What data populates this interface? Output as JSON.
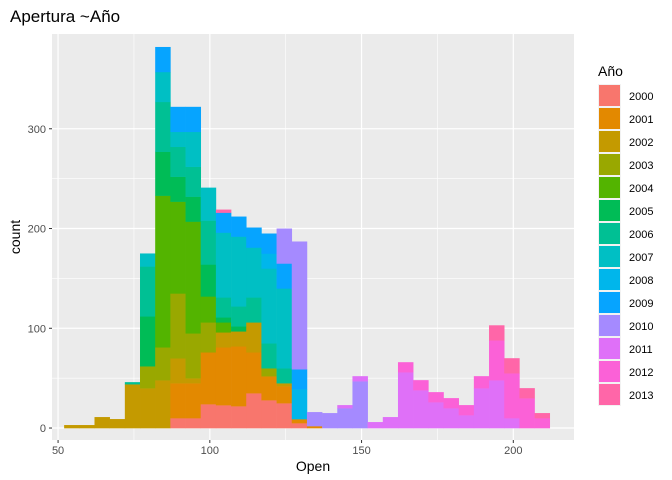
{
  "chart_data": {
    "type": "bar",
    "subtype": "stacked-histogram",
    "title": "Apertura ~Año",
    "xlabel": "Open",
    "ylabel": "count",
    "xlim": [
      48,
      220
    ],
    "ylim": [
      -12,
      395
    ],
    "x_ticks": [
      50,
      100,
      150,
      200
    ],
    "y_ticks": [
      0,
      100,
      200,
      300
    ],
    "grid": true,
    "legend_position": "right",
    "legend_title": "Año",
    "bin_starts": [
      52,
      57,
      62,
      67,
      72,
      77,
      82,
      87,
      92,
      97,
      102,
      107,
      112,
      117,
      122,
      127,
      132,
      137,
      142,
      147,
      152,
      157,
      162,
      167,
      172,
      177,
      182,
      187,
      192,
      197,
      202,
      207
    ],
    "bin_width": 5,
    "series": [
      {
        "name": "2000",
        "color": "#F8766D",
        "values": [
          0,
          0,
          0,
          0,
          0,
          0,
          0,
          0,
          0,
          0,
          0,
          0,
          0,
          0,
          0,
          0,
          0,
          0,
          0,
          0,
          0,
          0,
          0,
          0,
          0,
          0,
          0,
          0,
          0,
          0,
          0,
          0
        ]
      },
      {
        "name": "2001",
        "color": "#E38900",
        "values": [
          0,
          0,
          0,
          0,
          0,
          0,
          0,
          0,
          0,
          0,
          0,
          0,
          0,
          0,
          0,
          0,
          0,
          0,
          0,
          0,
          0,
          0,
          0,
          0,
          0,
          0,
          0,
          0,
          0,
          0,
          0,
          0
        ]
      },
      {
        "name": "2002",
        "color": "#C49A00",
        "values": [
          0,
          0,
          0,
          0,
          0,
          0,
          0,
          0,
          0,
          0,
          0,
          0,
          0,
          0,
          0,
          0,
          0,
          0,
          0,
          0,
          0,
          0,
          0,
          0,
          0,
          0,
          0,
          0,
          0,
          0,
          0,
          0
        ]
      },
      {
        "name": "2003",
        "color": "#99A800",
        "values": [
          0,
          0,
          0,
          0,
          0,
          0,
          0,
          0,
          0,
          0,
          0,
          0,
          0,
          0,
          0,
          0,
          0,
          0,
          0,
          0,
          0,
          0,
          0,
          0,
          0,
          0,
          0,
          0,
          0,
          0,
          0,
          0
        ]
      },
      {
        "name": "2004",
        "color": "#53B400",
        "values": [
          0,
          0,
          0,
          0,
          0,
          0,
          0,
          0,
          0,
          0,
          0,
          0,
          0,
          0,
          0,
          0,
          0,
          0,
          0,
          0,
          0,
          0,
          0,
          0,
          0,
          0,
          0,
          0,
          0,
          0,
          0,
          0
        ]
      },
      {
        "name": "2005",
        "color": "#00BC56",
        "values": [
          0,
          0,
          0,
          0,
          0,
          0,
          0,
          0,
          0,
          0,
          0,
          0,
          0,
          0,
          0,
          0,
          0,
          0,
          0,
          0,
          0,
          0,
          0,
          0,
          0,
          0,
          0,
          0,
          0,
          0,
          0,
          0
        ]
      },
      {
        "name": "2006",
        "color": "#00C094",
        "values": [
          0,
          0,
          0,
          0,
          0,
          0,
          0,
          0,
          0,
          0,
          0,
          0,
          0,
          0,
          0,
          0,
          0,
          0,
          0,
          0,
          0,
          0,
          0,
          0,
          0,
          0,
          0,
          0,
          0,
          0,
          0,
          0
        ]
      },
      {
        "name": "2007",
        "color": "#00BFC4",
        "values": [
          0,
          0,
          0,
          0,
          0,
          0,
          0,
          0,
          0,
          0,
          0,
          0,
          0,
          0,
          0,
          0,
          0,
          0,
          0,
          0,
          0,
          0,
          0,
          0,
          0,
          0,
          0,
          0,
          0,
          0,
          0,
          0
        ]
      },
      {
        "name": "2008",
        "color": "#00B6EB",
        "values": [
          0,
          0,
          0,
          0,
          0,
          0,
          0,
          0,
          0,
          0,
          0,
          0,
          0,
          0,
          0,
          0,
          0,
          0,
          0,
          0,
          0,
          0,
          0,
          0,
          0,
          0,
          0,
          0,
          0,
          0,
          0,
          0
        ]
      },
      {
        "name": "2009",
        "color": "#06A4FF",
        "values": [
          0,
          0,
          0,
          0,
          0,
          0,
          0,
          0,
          0,
          0,
          0,
          0,
          0,
          0,
          0,
          0,
          0,
          0,
          0,
          0,
          0,
          0,
          0,
          0,
          0,
          0,
          0,
          0,
          0,
          0,
          0,
          0
        ]
      },
      {
        "name": "2010",
        "color": "#A58AFF",
        "values": [
          0,
          0,
          0,
          0,
          0,
          0,
          0,
          0,
          0,
          0,
          0,
          0,
          0,
          0,
          0,
          0,
          0,
          0,
          0,
          0,
          0,
          0,
          0,
          0,
          0,
          0,
          0,
          0,
          0,
          0,
          0,
          0
        ]
      },
      {
        "name": "2011",
        "color": "#DF70F8",
        "values": [
          0,
          0,
          0,
          0,
          0,
          0,
          0,
          0,
          0,
          0,
          0,
          0,
          0,
          0,
          0,
          0,
          0,
          0,
          0,
          0,
          0,
          0,
          0,
          0,
          0,
          0,
          0,
          0,
          0,
          0,
          0,
          0
        ]
      },
      {
        "name": "2012",
        "color": "#FB61D7",
        "values": [
          0,
          0,
          0,
          0,
          0,
          0,
          0,
          0,
          0,
          0,
          0,
          0,
          0,
          0,
          0,
          0,
          0,
          0,
          0,
          0,
          0,
          0,
          0,
          0,
          0,
          0,
          0,
          0,
          0,
          0,
          0,
          0
        ]
      },
      {
        "name": "2013",
        "color": "#FF66A8",
        "values": [
          0,
          0,
          0,
          0,
          0,
          0,
          0,
          0,
          0,
          0,
          0,
          0,
          0,
          0,
          0,
          0,
          0,
          0,
          0,
          0,
          0,
          0,
          0,
          0,
          0,
          0,
          0,
          0,
          0,
          0,
          0,
          0
        ]
      }
    ],
    "bin_segments": [
      [
        [
          "2002",
          3
        ]
      ],
      [
        [
          "2002",
          3
        ]
      ],
      [
        [
          "2002",
          11
        ]
      ],
      [
        [
          "2002",
          9
        ]
      ],
      [
        [
          "2002",
          44
        ],
        [
          "2006",
          2
        ]
      ],
      [
        [
          "2002",
          40
        ],
        [
          "2003",
          22
        ],
        [
          "2005",
          50
        ],
        [
          "2006",
          50
        ],
        [
          "2007",
          13
        ]
      ],
      [
        [
          "2002",
          48
        ],
        [
          "2003",
          33
        ],
        [
          "2004",
          152
        ],
        [
          "2005",
          44
        ],
        [
          "2006",
          50
        ],
        [
          "2007",
          30
        ],
        [
          "2009",
          25
        ]
      ],
      [
        [
          "2000",
          10
        ],
        [
          "2001",
          35
        ],
        [
          "2002",
          25
        ],
        [
          "2003",
          65
        ],
        [
          "2004",
          92
        ],
        [
          "2005",
          25
        ],
        [
          "2006",
          30
        ],
        [
          "2007",
          15
        ],
        [
          "2009",
          25
        ]
      ],
      [
        [
          "2000",
          10
        ],
        [
          "2001",
          35
        ],
        [
          "2002",
          5
        ],
        [
          "2003",
          45
        ],
        [
          "2004",
          112
        ],
        [
          "2005",
          25
        ],
        [
          "2006",
          30
        ],
        [
          "2007",
          35
        ],
        [
          "2009",
          25
        ]
      ],
      [
        [
          "2000",
          24
        ],
        [
          "2001",
          52
        ],
        [
          "2003",
          30
        ],
        [
          "2004",
          26
        ],
        [
          "2005",
          32
        ],
        [
          "2006",
          44
        ],
        [
          "2007",
          33
        ]
      ],
      [
        [
          "2000",
          23
        ],
        [
          "2001",
          58
        ],
        [
          "2002",
          15
        ],
        [
          "2004",
          10
        ],
        [
          "2005",
          5
        ],
        [
          "2006",
          20
        ],
        [
          "2007",
          65
        ],
        [
          "2009",
          20
        ],
        [
          "2013",
          3
        ]
      ],
      [
        [
          "2000",
          22
        ],
        [
          "2001",
          60
        ],
        [
          "2002",
          15
        ],
        [
          "2005",
          5
        ],
        [
          "2006",
          20
        ],
        [
          "2007",
          70
        ],
        [
          "2009",
          20
        ]
      ],
      [
        [
          "2000",
          35
        ],
        [
          "2001",
          41
        ],
        [
          "2002",
          30
        ],
        [
          "2006",
          25
        ],
        [
          "2007",
          50
        ],
        [
          "2009",
          20
        ]
      ],
      [
        [
          "2000",
          28
        ],
        [
          "2001",
          24
        ],
        [
          "2003",
          8
        ],
        [
          "2006",
          25
        ],
        [
          "2007",
          75
        ],
        [
          "2008",
          15
        ],
        [
          "2009",
          20
        ]
      ],
      [
        [
          "2000",
          25
        ],
        [
          "2001",
          17
        ],
        [
          "2002",
          3
        ],
        [
          "2006",
          15
        ],
        [
          "2007",
          80
        ],
        [
          "2009",
          25
        ],
        [
          "2010",
          35
        ]
      ],
      [
        [
          "2000",
          5
        ],
        [
          "2001",
          4
        ],
        [
          "2008",
          30
        ],
        [
          "2009",
          20
        ],
        [
          "2010",
          128
        ]
      ],
      [
        [
          "2001",
          2
        ],
        [
          "2010",
          14
        ]
      ],
      [
        [
          "2010",
          15
        ]
      ],
      [
        [
          "2010",
          20
        ],
        [
          "2011",
          3
        ]
      ],
      [
        [
          "2010",
          47
        ],
        [
          "2011",
          5
        ]
      ],
      [
        [
          "2011",
          6
        ]
      ],
      [
        [
          "2011",
          11
        ]
      ],
      [
        [
          "2011",
          56
        ],
        [
          "2012",
          10
        ]
      ],
      [
        [
          "2011",
          38
        ],
        [
          "2012",
          10
        ]
      ],
      [
        [
          "2011",
          26
        ],
        [
          "2012",
          10
        ]
      ],
      [
        [
          "2011",
          20
        ],
        [
          "2012",
          10
        ]
      ],
      [
        [
          "2011",
          13
        ],
        [
          "2012",
          10
        ]
      ],
      [
        [
          "2011",
          40
        ],
        [
          "2012",
          12
        ]
      ],
      [
        [
          "2011",
          48
        ],
        [
          "2012",
          40
        ],
        [
          "2013",
          15
        ]
      ],
      [
        [
          "2011",
          10
        ],
        [
          "2012",
          45
        ],
        [
          "2013",
          15
        ]
      ],
      [
        [
          "2012",
          30
        ],
        [
          "2013",
          10
        ]
      ],
      [
        [
          "2012",
          10
        ],
        [
          "2013",
          5
        ]
      ]
    ]
  }
}
